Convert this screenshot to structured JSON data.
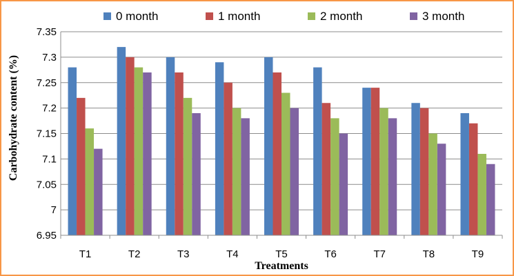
{
  "chart_data": {
    "type": "bar",
    "categories": [
      "T1",
      "T2",
      "T3",
      "T4",
      "T5",
      "T6",
      "T7",
      "T8",
      "T9"
    ],
    "series": [
      {
        "name": "0 month",
        "color": "#4f81bd",
        "values": [
          7.28,
          7.32,
          7.3,
          7.29,
          7.3,
          7.28,
          7.24,
          7.21,
          7.19
        ]
      },
      {
        "name": "1 month",
        "color": "#c0504d",
        "values": [
          7.22,
          7.3,
          7.27,
          7.25,
          7.27,
          7.21,
          7.24,
          7.2,
          7.17
        ]
      },
      {
        "name": "2 month",
        "color": "#9bbb59",
        "values": [
          7.16,
          7.28,
          7.22,
          7.2,
          7.23,
          7.18,
          7.2,
          7.15,
          7.11
        ]
      },
      {
        "name": "3 month",
        "color": "#8064a2",
        "values": [
          7.12,
          7.27,
          7.19,
          7.18,
          7.2,
          7.15,
          7.18,
          7.13,
          7.09
        ]
      }
    ],
    "ylim": [
      6.95,
      7.35
    ],
    "yticks": [
      "6.95",
      "7",
      "7.05",
      "7.1",
      "7.15",
      "7.2",
      "7.25",
      "7.3",
      "7.35"
    ],
    "xlabel": "Treatments",
    "ylabel": "Carbohydrate content (%)",
    "title": "",
    "grid": "horizontal",
    "legend_position": "top"
  }
}
